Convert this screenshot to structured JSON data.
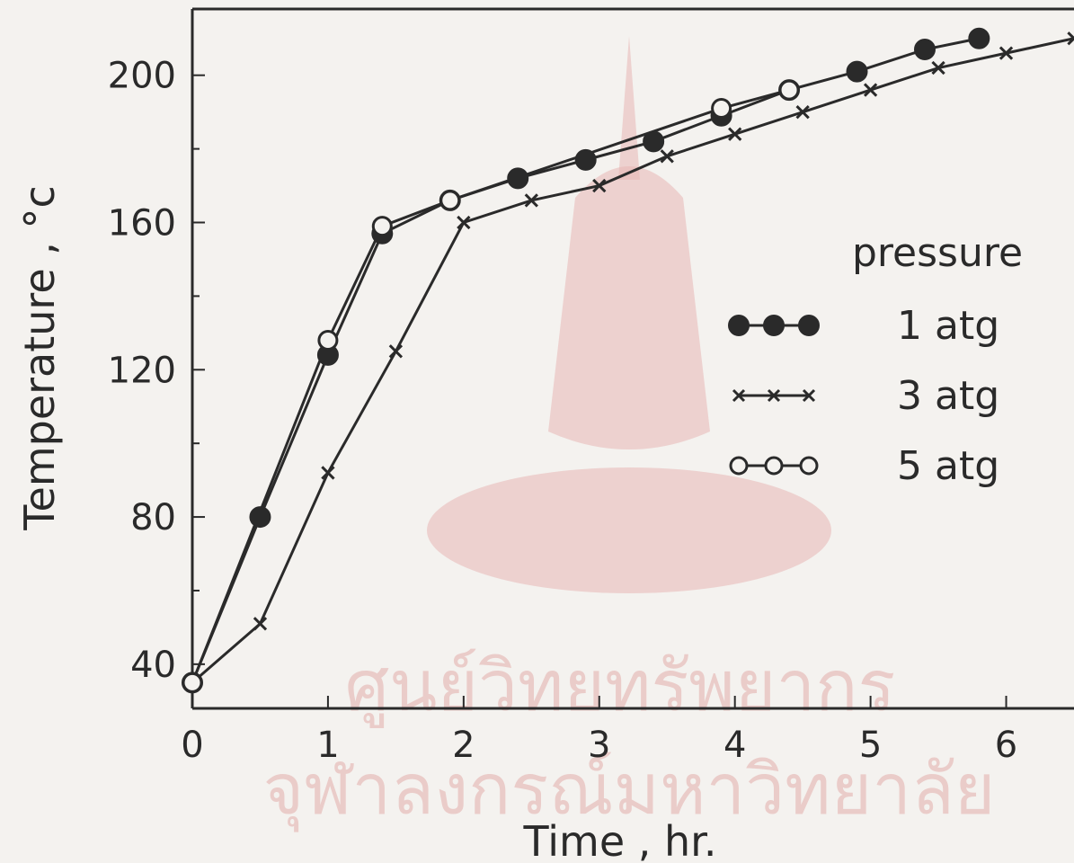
{
  "chart_data": {
    "type": "line",
    "title": "",
    "xlabel": "Time , hr.",
    "ylabel": "Temperature , °c",
    "xlim": [
      0,
      6.5
    ],
    "ylim": [
      28,
      218
    ],
    "x_ticks": [
      0,
      1,
      2,
      3,
      4,
      5,
      6
    ],
    "y_ticks": [
      40,
      80,
      120,
      160,
      200
    ],
    "grid": false,
    "legend_title": "pressure",
    "legend_position": "right",
    "series": [
      {
        "name": "1 atg",
        "marker": "filled-circle",
        "x": [
          0,
          0.5,
          1.0,
          1.4,
          1.9,
          2.4,
          2.9,
          3.4,
          3.9,
          4.4,
          4.9,
          5.4,
          5.8
        ],
        "y": [
          35,
          80,
          124,
          157,
          166,
          172,
          177,
          182,
          189,
          196,
          201,
          207,
          210
        ]
      },
      {
        "name": "3 atg",
        "marker": "cross",
        "x": [
          0,
          0.5,
          1.0,
          1.5,
          2.0,
          2.5,
          3.0,
          3.5,
          4.0,
          4.5,
          5.0,
          5.5,
          6.0,
          6.5
        ],
        "y": [
          35,
          51,
          92,
          125,
          160,
          166,
          170,
          178,
          184,
          190,
          196,
          202,
          206,
          210
        ]
      },
      {
        "name": "5 atg",
        "marker": "open-circle",
        "x": [
          0,
          1.0,
          1.4,
          1.9,
          3.9,
          4.4
        ],
        "y": [
          35,
          128,
          159,
          166,
          191,
          196
        ]
      }
    ]
  }
}
